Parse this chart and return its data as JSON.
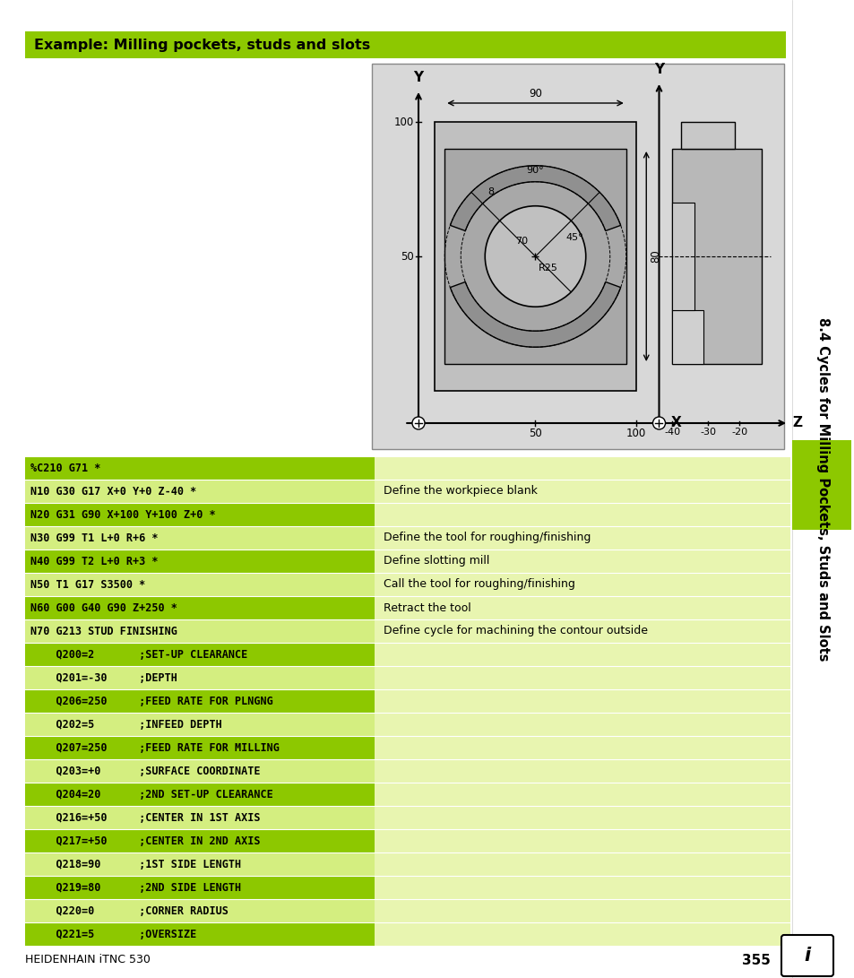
{
  "title": "Example: Milling pockets, studs and slots",
  "sidebar_title": "8.4 Cycles for Milling Pockets, Studs and Slots",
  "page_number": "355",
  "footer_text": "HEIDENHAIN iTNC 530",
  "code_rows": [
    {
      "code": "%C210 G71 *",
      "comment": "",
      "indent": false,
      "dark": true
    },
    {
      "code": "N10 G30 G17 X+0 Y+0 Z-40 *",
      "comment": "Define the workpiece blank",
      "indent": false,
      "dark": false
    },
    {
      "code": "N20 G31 G90 X+100 Y+100 Z+0 *",
      "comment": "",
      "indent": false,
      "dark": true
    },
    {
      "code": "N30 G99 T1 L+0 R+6 *",
      "comment": "Define the tool for roughing/finishing",
      "indent": false,
      "dark": false
    },
    {
      "code": "N40 G99 T2 L+0 R+3 *",
      "comment": "Define slotting mill",
      "indent": false,
      "dark": true
    },
    {
      "code": "N50 T1 G17 S3500 *",
      "comment": "Call the tool for roughing/finishing",
      "indent": false,
      "dark": false
    },
    {
      "code": "N60 G00 G40 G90 Z+250 *",
      "comment": "Retract the tool",
      "indent": false,
      "dark": true
    },
    {
      "code": "N70 G213 STUD FINISHING",
      "comment": "Define cycle for machining the contour outside",
      "indent": false,
      "dark": false
    },
    {
      "code": "    Q200=2       ;SET-UP CLEARANCE",
      "comment": "",
      "indent": true,
      "dark": true
    },
    {
      "code": "    Q201=-30     ;DEPTH",
      "comment": "",
      "indent": true,
      "dark": false
    },
    {
      "code": "    Q206=250     ;FEED RATE FOR PLNGNG",
      "comment": "",
      "indent": true,
      "dark": true
    },
    {
      "code": "    Q202=5       ;INFEED DEPTH",
      "comment": "",
      "indent": true,
      "dark": false
    },
    {
      "code": "    Q207=250     ;FEED RATE FOR MILLING",
      "comment": "",
      "indent": true,
      "dark": true
    },
    {
      "code": "    Q203=+0      ;SURFACE COORDINATE",
      "comment": "",
      "indent": true,
      "dark": false
    },
    {
      "code": "    Q204=20      ;2ND SET-UP CLEARANCE",
      "comment": "",
      "indent": true,
      "dark": true
    },
    {
      "code": "    Q216=+50     ;CENTER IN 1ST AXIS",
      "comment": "",
      "indent": true,
      "dark": false
    },
    {
      "code": "    Q217=+50     ;CENTER IN 2ND AXIS",
      "comment": "",
      "indent": true,
      "dark": true
    },
    {
      "code": "    Q218=90      ;1ST SIDE LENGTH",
      "comment": "",
      "indent": true,
      "dark": false
    },
    {
      "code": "    Q219=80      ;2ND SIDE LENGTH",
      "comment": "",
      "indent": true,
      "dark": true
    },
    {
      "code": "    Q220=0       ;CORNER RADIUS",
      "comment": "",
      "indent": true,
      "dark": false
    },
    {
      "code": "    Q221=5       ;OVERSIZE",
      "comment": "",
      "indent": true,
      "dark": true
    }
  ],
  "dark_green": "#8dc800",
  "light_green": "#d4ee80",
  "very_light_green": "#e8f5b0"
}
